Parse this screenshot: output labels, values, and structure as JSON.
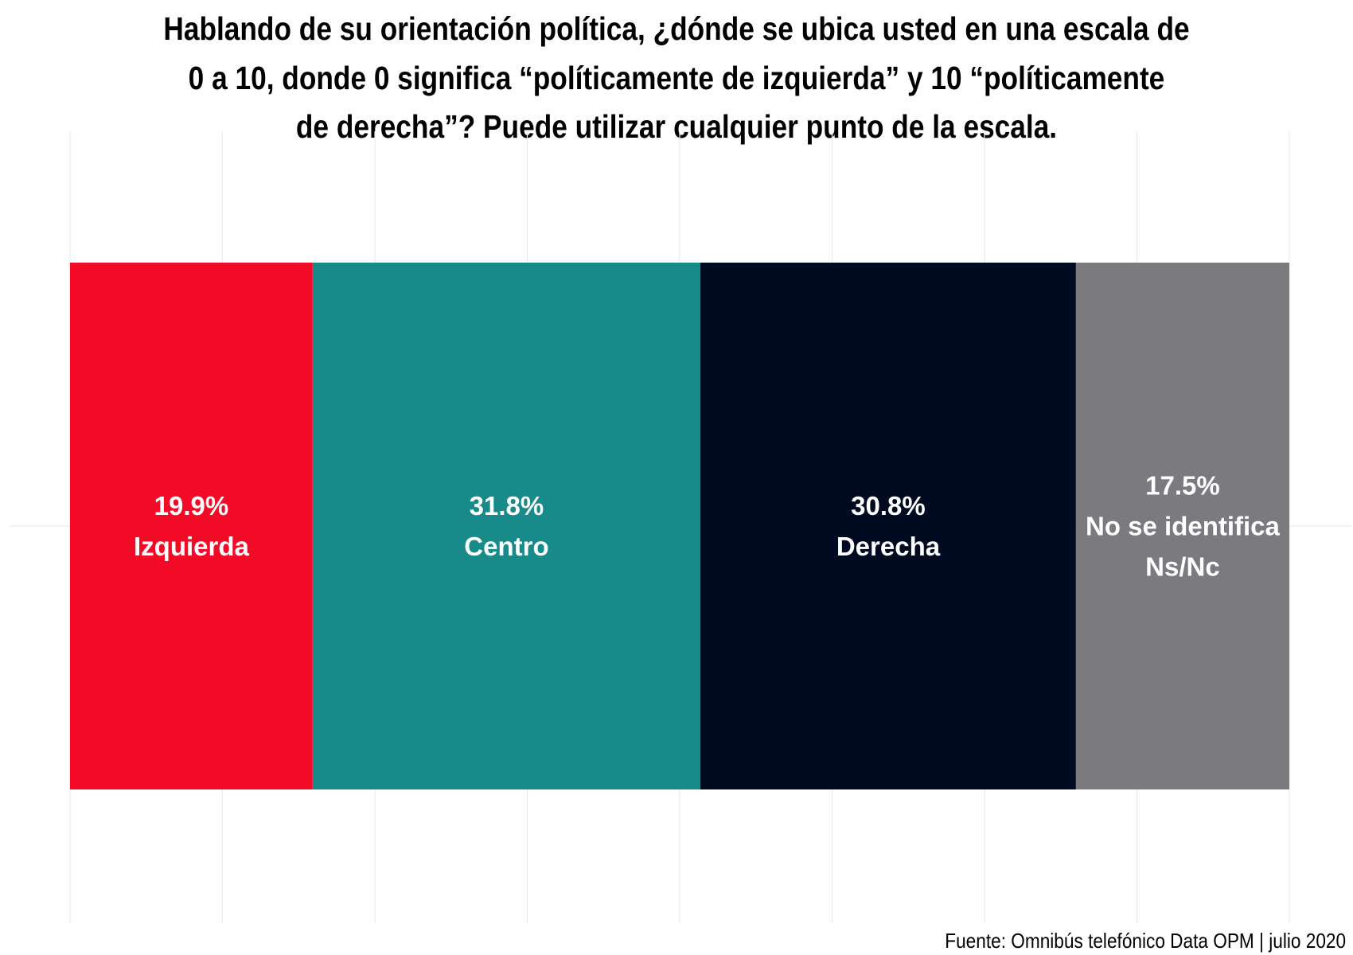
{
  "chart_data": {
    "type": "bar",
    "orientation": "horizontal",
    "stacked": true,
    "title": "Hablando de su orientación política, ¿dónde se ubica usted en una escala de 0 a 10, donde 0 significa “políticamente de izquierda” y 10 “políticamente de derecha”? Puede utilizar cualquier punto de la escala.",
    "title_lines": [
      "Hablando de su orientación política, ¿dónde se ubica usted en una escala de",
      "0 a 10, donde 0 significa “políticamente de izquierda” y 10 “políticamente",
      "de derecha”? Puede utilizar cualquier punto de la escala."
    ],
    "xlabel": "",
    "ylabel": "",
    "xlim": [
      0,
      100
    ],
    "grid": true,
    "legend": "none",
    "series": [
      {
        "name": "Izquierda",
        "value": 19.9,
        "value_label": "19.9%",
        "label_lines": [
          "Izquierda"
        ],
        "color": "#F20A27"
      },
      {
        "name": "Centro",
        "value": 31.8,
        "value_label": "31.8%",
        "label_lines": [
          "Centro"
        ],
        "color": "#188A89"
      },
      {
        "name": "Derecha",
        "value": 30.8,
        "value_label": "30.8%",
        "label_lines": [
          "Derecha"
        ],
        "color": "#000B22"
      },
      {
        "name": "No se identifica Ns/Nc",
        "value": 17.5,
        "value_label": "17.5%",
        "label_lines": [
          "No se identifica",
          "Ns/Nc"
        ],
        "color": "#7A7A7F"
      }
    ],
    "caption": "Fuente: Omnibús telefónico Data OPM | julio 2020"
  }
}
